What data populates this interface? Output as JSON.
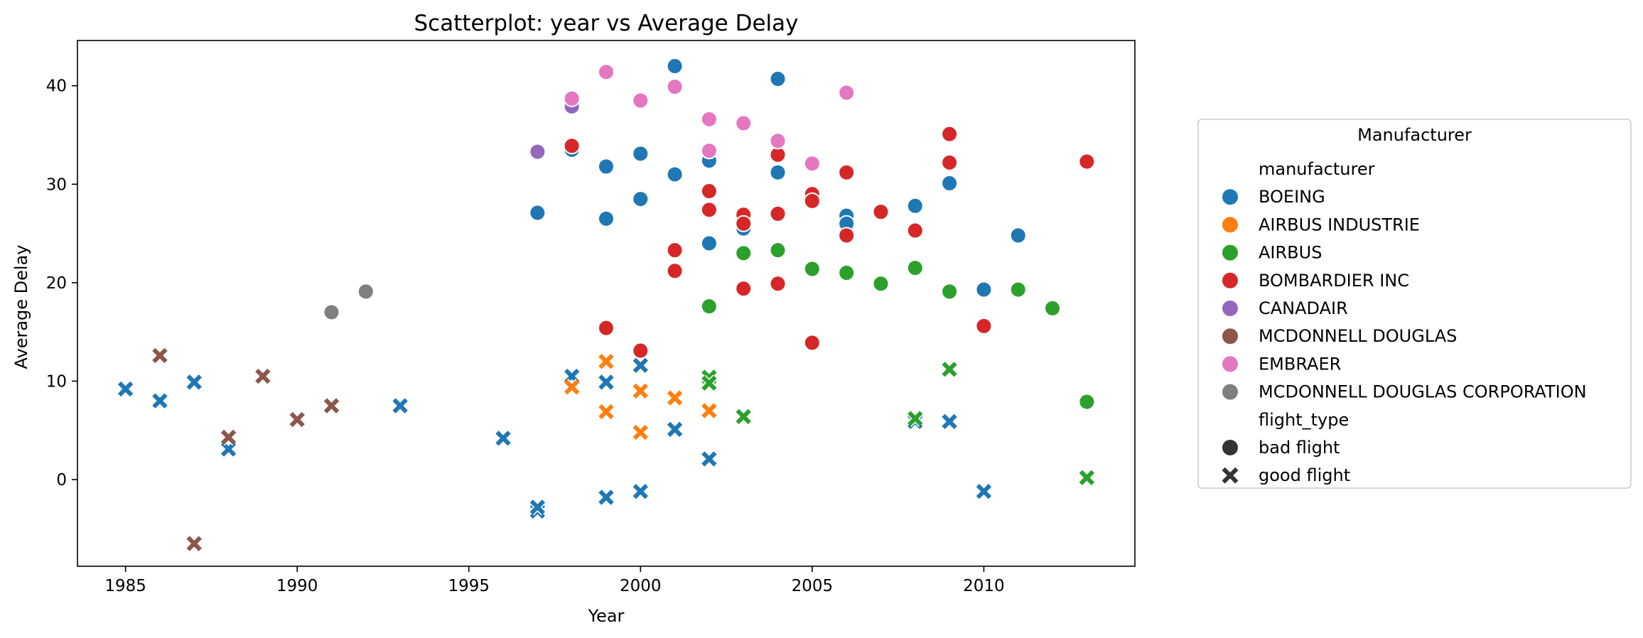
{
  "chart_data": {
    "type": "scatter",
    "title": "Scatterplot: year vs Average Delay",
    "xlabel": "Year",
    "ylabel": "Average Delay",
    "xlim": [
      1983.6,
      2014.4
    ],
    "ylim": [
      -8.8,
      44.6
    ],
    "xticks": [
      1985,
      1990,
      1995,
      2000,
      2005,
      2010
    ],
    "yticks": [
      0,
      10,
      20,
      30,
      40
    ],
    "grid": false,
    "legend": {
      "title": "Manufacturer",
      "placement": "right",
      "hue_header": "manufacturer",
      "style_header": "flight_type",
      "hue_entries": [
        {
          "name": "BOEING",
          "color": "#1f77b4"
        },
        {
          "name": "AIRBUS INDUSTRIE",
          "color": "#ff7f0e"
        },
        {
          "name": "AIRBUS",
          "color": "#2ca02c"
        },
        {
          "name": "BOMBARDIER INC",
          "color": "#d62728"
        },
        {
          "name": "CANADAIR",
          "color": "#9467bd"
        },
        {
          "name": "MCDONNELL DOUGLAS",
          "color": "#8c564b"
        },
        {
          "name": "EMBRAER",
          "color": "#e377c2"
        },
        {
          "name": "MCDONNELL DOUGLAS CORPORATION",
          "color": "#7f7f7f"
        }
      ],
      "style_entries": [
        {
          "name": "bad flight",
          "marker": "circle"
        },
        {
          "name": "good flight",
          "marker": "x"
        }
      ]
    },
    "series": [
      {
        "manufacturer": "BOEING",
        "flight_type": "bad flight",
        "points": [
          [
            1997,
            27.1
          ],
          [
            1998,
            33.5
          ],
          [
            1999,
            31.8
          ],
          [
            1999,
            26.5
          ],
          [
            2000,
            33.1
          ],
          [
            2000,
            28.5
          ],
          [
            2001,
            42.0
          ],
          [
            2001,
            31.0
          ],
          [
            2002,
            32.4
          ],
          [
            2002,
            24.0
          ],
          [
            2003,
            25.5
          ],
          [
            2004,
            40.7
          ],
          [
            2004,
            31.2
          ],
          [
            2006,
            26.8
          ],
          [
            2006,
            26.0
          ],
          [
            2008,
            27.8
          ],
          [
            2009,
            30.1
          ],
          [
            2010,
            19.3
          ],
          [
            2011,
            24.8
          ]
        ]
      },
      {
        "manufacturer": "BOEING",
        "flight_type": "good flight",
        "points": [
          [
            1985,
            9.2
          ],
          [
            1986,
            8.0
          ],
          [
            1987,
            9.9
          ],
          [
            1988,
            3.1
          ],
          [
            1993,
            7.5
          ],
          [
            1996,
            4.2
          ],
          [
            1997,
            -3.2
          ],
          [
            1997,
            -2.8
          ],
          [
            1998,
            10.5
          ],
          [
            1999,
            9.9
          ],
          [
            1999,
            -1.8
          ],
          [
            2000,
            11.6
          ],
          [
            2000,
            -1.2
          ],
          [
            2001,
            5.1
          ],
          [
            2002,
            2.1
          ],
          [
            2008,
            5.9
          ],
          [
            2009,
            5.9
          ],
          [
            2010,
            -1.2
          ]
        ]
      },
      {
        "manufacturer": "AIRBUS INDUSTRIE",
        "flight_type": "good flight",
        "points": [
          [
            1998,
            9.4
          ],
          [
            1999,
            12.0
          ],
          [
            1999,
            6.9
          ],
          [
            2000,
            9.0
          ],
          [
            2000,
            4.8
          ],
          [
            2001,
            8.3
          ],
          [
            2002,
            7.0
          ]
        ]
      },
      {
        "manufacturer": "AIRBUS",
        "flight_type": "bad flight",
        "points": [
          [
            2002,
            17.6
          ],
          [
            2003,
            23.0
          ],
          [
            2004,
            23.3
          ],
          [
            2005,
            21.4
          ],
          [
            2006,
            21.0
          ],
          [
            2007,
            19.9
          ],
          [
            2008,
            21.5
          ],
          [
            2009,
            19.1
          ],
          [
            2011,
            19.3
          ],
          [
            2012,
            17.4
          ],
          [
            2013,
            7.9
          ]
        ]
      },
      {
        "manufacturer": "AIRBUS",
        "flight_type": "good flight",
        "points": [
          [
            2002,
            10.4
          ],
          [
            2002,
            9.8
          ],
          [
            2003,
            6.4
          ],
          [
            2008,
            6.2
          ],
          [
            2009,
            11.2
          ],
          [
            2013,
            0.2
          ]
        ]
      },
      {
        "manufacturer": "BOMBARDIER INC",
        "flight_type": "bad flight",
        "points": [
          [
            1998,
            33.9
          ],
          [
            1999,
            15.4
          ],
          [
            2000,
            13.1
          ],
          [
            2001,
            23.3
          ],
          [
            2001,
            21.2
          ],
          [
            2002,
            29.3
          ],
          [
            2002,
            27.4
          ],
          [
            2003,
            26.9
          ],
          [
            2003,
            26.0
          ],
          [
            2003,
            19.4
          ],
          [
            2004,
            33.0
          ],
          [
            2004,
            27.0
          ],
          [
            2004,
            19.9
          ],
          [
            2005,
            29.0
          ],
          [
            2005,
            28.3
          ],
          [
            2005,
            13.9
          ],
          [
            2006,
            31.2
          ],
          [
            2006,
            24.8
          ],
          [
            2007,
            27.2
          ],
          [
            2008,
            25.3
          ],
          [
            2009,
            35.1
          ],
          [
            2009,
            32.2
          ],
          [
            2010,
            15.6
          ],
          [
            2013,
            32.3
          ]
        ]
      },
      {
        "manufacturer": "CANADAIR",
        "flight_type": "bad flight",
        "points": [
          [
            1997,
            33.3
          ],
          [
            1998,
            37.9
          ]
        ]
      },
      {
        "manufacturer": "MCDONNELL DOUGLAS",
        "flight_type": "good flight",
        "points": [
          [
            1986,
            12.6
          ],
          [
            1987,
            -6.5
          ],
          [
            1988,
            4.3
          ],
          [
            1989,
            10.5
          ],
          [
            1990,
            6.1
          ],
          [
            1991,
            7.5
          ]
        ]
      },
      {
        "manufacturer": "EMBRAER",
        "flight_type": "bad flight",
        "points": [
          [
            1998,
            38.7
          ],
          [
            1999,
            41.4
          ],
          [
            2000,
            38.5
          ],
          [
            2001,
            39.9
          ],
          [
            2002,
            36.6
          ],
          [
            2002,
            33.4
          ],
          [
            2003,
            36.2
          ],
          [
            2004,
            34.4
          ],
          [
            2005,
            32.1
          ],
          [
            2006,
            39.3
          ]
        ]
      },
      {
        "manufacturer": "MCDONNELL DOUGLAS CORPORATION",
        "flight_type": "bad flight",
        "points": [
          [
            1991,
            17.0
          ],
          [
            1992,
            19.1
          ]
        ]
      }
    ]
  }
}
